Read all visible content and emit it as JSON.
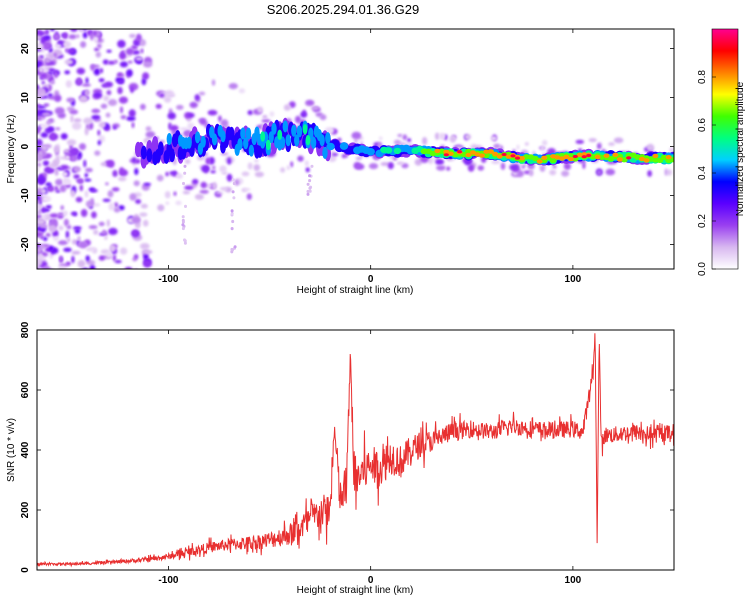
{
  "figure_title": "S206.2025.294.01.36.G29",
  "chart_data": [
    {
      "type": "heatmap",
      "title": "S206.2025.294.01.36.G29",
      "xlabel": "Height of straight line (km)",
      "ylabel": "Frequency (Hz)",
      "xlim": [
        -165,
        150
      ],
      "ylim": [
        -25,
        24
      ],
      "xticks": [
        -100,
        0,
        100
      ],
      "yticks": [
        -20,
        -10,
        0,
        10,
        20
      ],
      "colorbar": {
        "label": "Normalized spectral amplitude",
        "range": [
          0,
          1
        ],
        "ticks": [
          0.0,
          0.2,
          0.4,
          0.6,
          0.8
        ],
        "tick_labels": [
          "0.0",
          "0.2",
          "0.4",
          "0.6",
          "0.8"
        ],
        "colors": [
          "#ffffff",
          "#d8b8f0",
          "#9a40f0",
          "#5a00ff",
          "#0000ff",
          "#00d0ff",
          "#00ff80",
          "#40ff00",
          "#ffff00",
          "#ff8000",
          "#ff0000",
          "#ff0090"
        ]
      },
      "ridge": {
        "description": "dominant frequency ridge vs height",
        "x": [
          -115,
          -100,
          -90,
          -80,
          -70,
          -60,
          -50,
          -40,
          -30,
          -20,
          -10,
          0,
          10,
          20,
          40,
          60,
          75,
          85,
          95,
          110,
          125,
          150
        ],
        "y": [
          -1.5,
          -0.5,
          0.5,
          1.5,
          1.0,
          0.5,
          1.5,
          2.5,
          2.0,
          0.5,
          -0.5,
          -1.0,
          -1.0,
          -0.8,
          -1.5,
          -1.5,
          -2.5,
          -2.8,
          -2.2,
          -1.8,
          -2.2,
          -2.5
        ],
        "amp": [
          0.25,
          0.35,
          0.4,
          0.4,
          0.4,
          0.45,
          0.45,
          0.45,
          0.45,
          0.4,
          0.4,
          0.4,
          0.5,
          0.55,
          0.85,
          0.8,
          0.85,
          0.7,
          0.85,
          0.8,
          0.85,
          0.7
        ]
      }
    },
    {
      "type": "line",
      "xlabel": "Height of straight line (km)",
      "ylabel": "SNR (10 * v/v)",
      "xlim": [
        -165,
        150
      ],
      "ylim": [
        0,
        800
      ],
      "xticks": [
        -100,
        0,
        100
      ],
      "yticks": [
        0,
        200,
        400,
        600,
        800
      ],
      "series": [
        {
          "name": "SNR",
          "color": "#e83030",
          "x": [
            -165,
            -150,
            -140,
            -130,
            -120,
            -110,
            -100,
            -90,
            -80,
            -70,
            -60,
            -50,
            -40,
            -35,
            -30,
            -25,
            -20,
            -18,
            -15,
            -12,
            -10,
            -8,
            -5,
            0,
            5,
            10,
            15,
            20,
            25,
            30,
            40,
            50,
            60,
            70,
            80,
            90,
            100,
            105,
            110,
            111,
            112,
            113,
            114,
            116,
            120,
            130,
            140,
            150
          ],
          "y": [
            20,
            20,
            22,
            25,
            30,
            35,
            45,
            60,
            75,
            85,
            90,
            100,
            120,
            140,
            170,
            190,
            200,
            470,
            230,
            280,
            700,
            300,
            320,
            350,
            340,
            380,
            360,
            400,
            420,
            430,
            460,
            470,
            460,
            480,
            470,
            465,
            470,
            460,
            660,
            800,
            80,
            790,
            420,
            450,
            450,
            460,
            450,
            460
          ],
          "noise": [
            5,
            5,
            6,
            6,
            8,
            10,
            12,
            18,
            22,
            25,
            30,
            35,
            45,
            55,
            60,
            70,
            80,
            60,
            90,
            95,
            60,
            100,
            90,
            80,
            80,
            75,
            70,
            60,
            55,
            45,
            40,
            35,
            35,
            35,
            35,
            35,
            35,
            35,
            30,
            10,
            10,
            10,
            30,
            35,
            35,
            35,
            35,
            35
          ]
        }
      ]
    }
  ]
}
